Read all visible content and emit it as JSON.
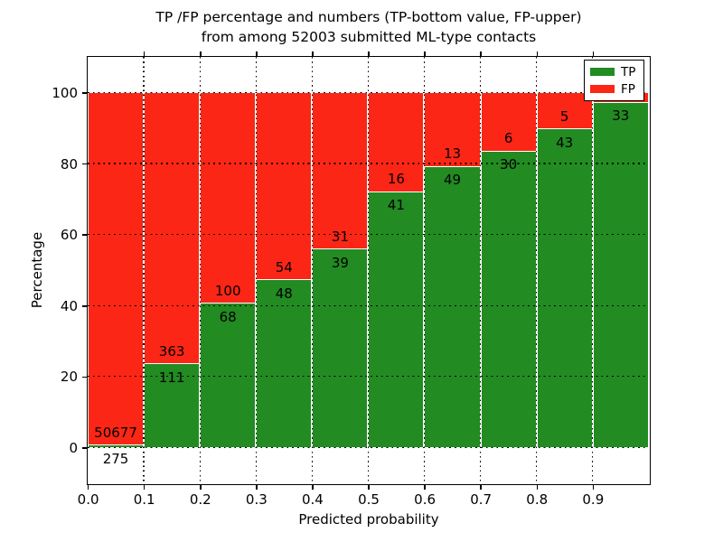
{
  "title": {
    "line1": "TP /FP percentage and numbers (TP-bottom value, FP-upper)",
    "line2": "from among 52003 submitted ML-type contacts"
  },
  "y_axis": {
    "label": "Percentage",
    "ticks": [
      "0",
      "20",
      "40",
      "60",
      "80",
      "100"
    ]
  },
  "x_axis": {
    "label": "Predicted probability",
    "ticks": [
      "0.0",
      "0.1",
      "0.2",
      "0.3",
      "0.4",
      "0.5",
      "0.6",
      "0.7",
      "0.8",
      "0.9"
    ]
  },
  "legend": {
    "items": [
      {
        "label": "TP",
        "color": "#228b22"
      },
      {
        "label": "FP",
        "color": "#fb2616"
      }
    ]
  },
  "colors": {
    "tp": "#228b22",
    "fp": "#fb2616",
    "axis": "#000000",
    "background": "#ffffff",
    "grid": "#000000",
    "bar_edge": "#ffffff",
    "label_text": "#000000"
  },
  "chart_data": {
    "type": "bar",
    "variant": "stacked-percentage",
    "title": "TP /FP percentage and numbers (TP-bottom value, FP-upper) from among 52003 submitted ML-type contacts",
    "xlabel": "Predicted probability",
    "ylabel": "Percentage",
    "xlim": [
      0.0,
      1.0
    ],
    "ylim": [
      -10,
      110
    ],
    "grid": true,
    "legend_position": "upper right",
    "total_contacts": 52003,
    "bin_width": 0.1,
    "series_names": [
      "TP",
      "FP"
    ],
    "bins": [
      {
        "x0": 0.0,
        "x1": 0.1,
        "tp_count": 275,
        "fp_count": 50677,
        "tp_pct": 0.54,
        "fp_pct": 99.46
      },
      {
        "x0": 0.1,
        "x1": 0.2,
        "tp_count": 111,
        "fp_count": 363,
        "tp_pct": 23.42,
        "fp_pct": 76.58
      },
      {
        "x0": 0.2,
        "x1": 0.3,
        "tp_count": 68,
        "fp_count": 100,
        "tp_pct": 40.48,
        "fp_pct": 59.52
      },
      {
        "x0": 0.3,
        "x1": 0.4,
        "tp_count": 48,
        "fp_count": 54,
        "tp_pct": 47.06,
        "fp_pct": 52.94
      },
      {
        "x0": 0.4,
        "x1": 0.5,
        "tp_count": 39,
        "fp_count": 31,
        "tp_pct": 55.71,
        "fp_pct": 44.29
      },
      {
        "x0": 0.5,
        "x1": 0.6,
        "tp_count": 41,
        "fp_count": 16,
        "tp_pct": 71.93,
        "fp_pct": 28.07
      },
      {
        "x0": 0.6,
        "x1": 0.7,
        "tp_count": 49,
        "fp_count": 13,
        "tp_pct": 79.03,
        "fp_pct": 20.97
      },
      {
        "x0": 0.7,
        "x1": 0.8,
        "tp_count": 30,
        "fp_count": 6,
        "tp_pct": 83.33,
        "fp_pct": 16.67
      },
      {
        "x0": 0.8,
        "x1": 0.9,
        "tp_count": 43,
        "fp_count": 5,
        "tp_pct": 89.58,
        "fp_pct": 10.42
      },
      {
        "x0": 0.9,
        "x1": 1.0,
        "tp_count": 33,
        "fp_count": null,
        "tp_pct": 97.1,
        "fp_pct": 2.9,
        "fp_label_visible": false
      }
    ]
  }
}
